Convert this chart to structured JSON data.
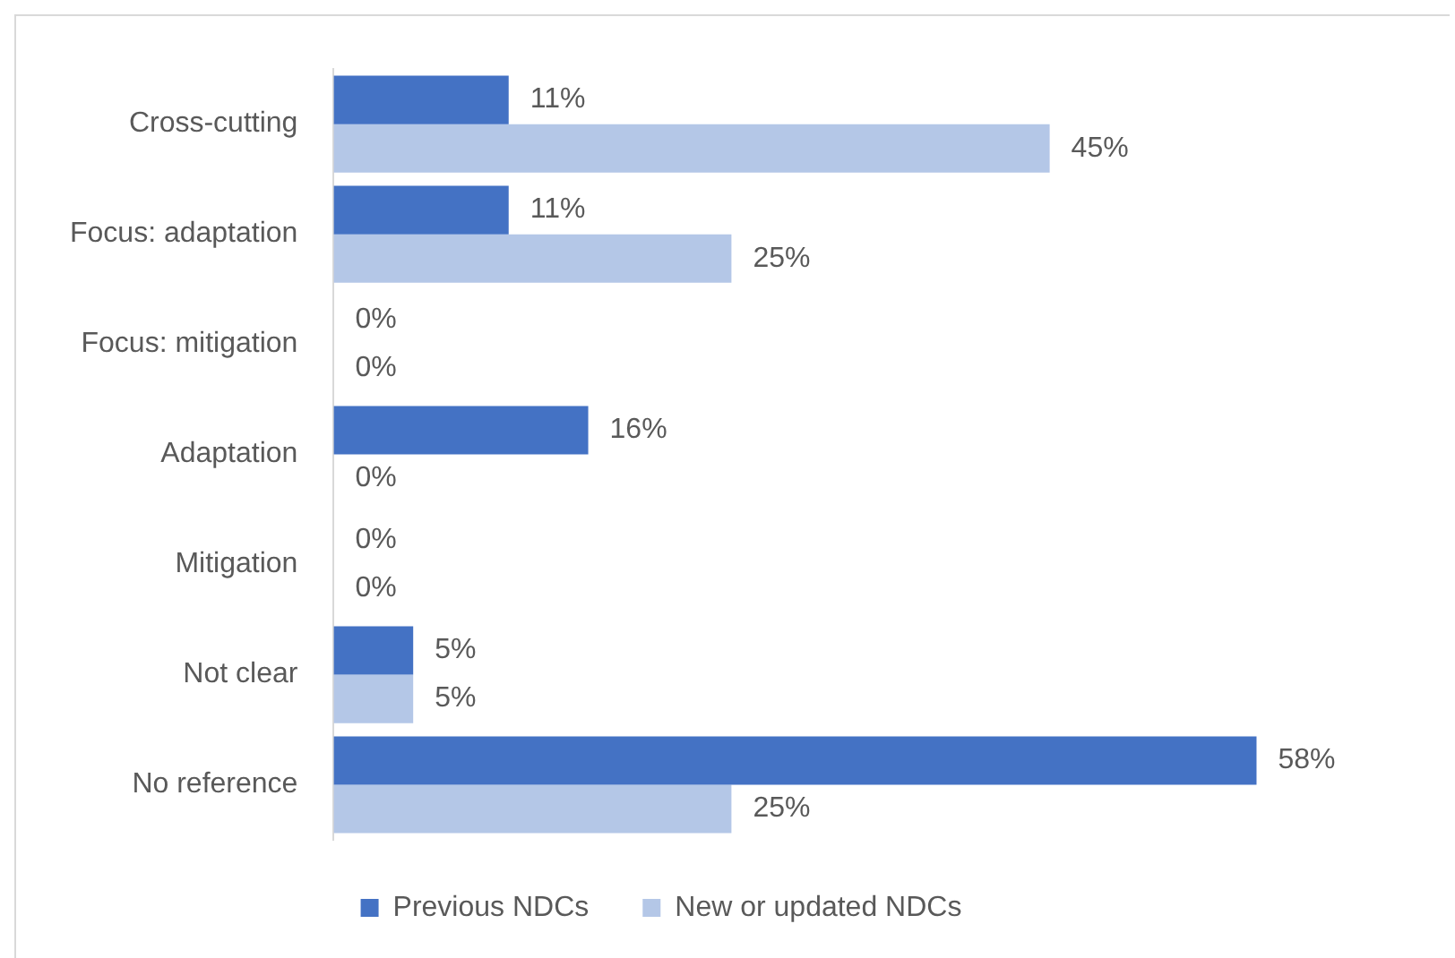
{
  "chart_data": {
    "type": "bar",
    "orientation": "horizontal",
    "categories": [
      "Cross-cutting",
      "Focus: adaptation",
      "Focus: mitigation",
      "Adaptation",
      "Mitigation",
      "Not clear",
      "No reference"
    ],
    "series": [
      {
        "name": "Previous NDCs",
        "color": "#4472c4",
        "values": [
          11,
          11,
          0,
          16,
          0,
          5,
          58
        ],
        "value_labels": [
          "11%",
          "11%",
          "0%",
          "16%",
          "0%",
          "5%",
          "58%"
        ]
      },
      {
        "name": "New or updated NDCs",
        "color": "#b4c7e7",
        "values": [
          45,
          25,
          0,
          0,
          0,
          5,
          25
        ],
        "value_labels": [
          "45%",
          "25%",
          "0%",
          "0%",
          "0%",
          "5%",
          "25%"
        ]
      }
    ],
    "legend": "bottom",
    "tick_labels": "y"
  }
}
